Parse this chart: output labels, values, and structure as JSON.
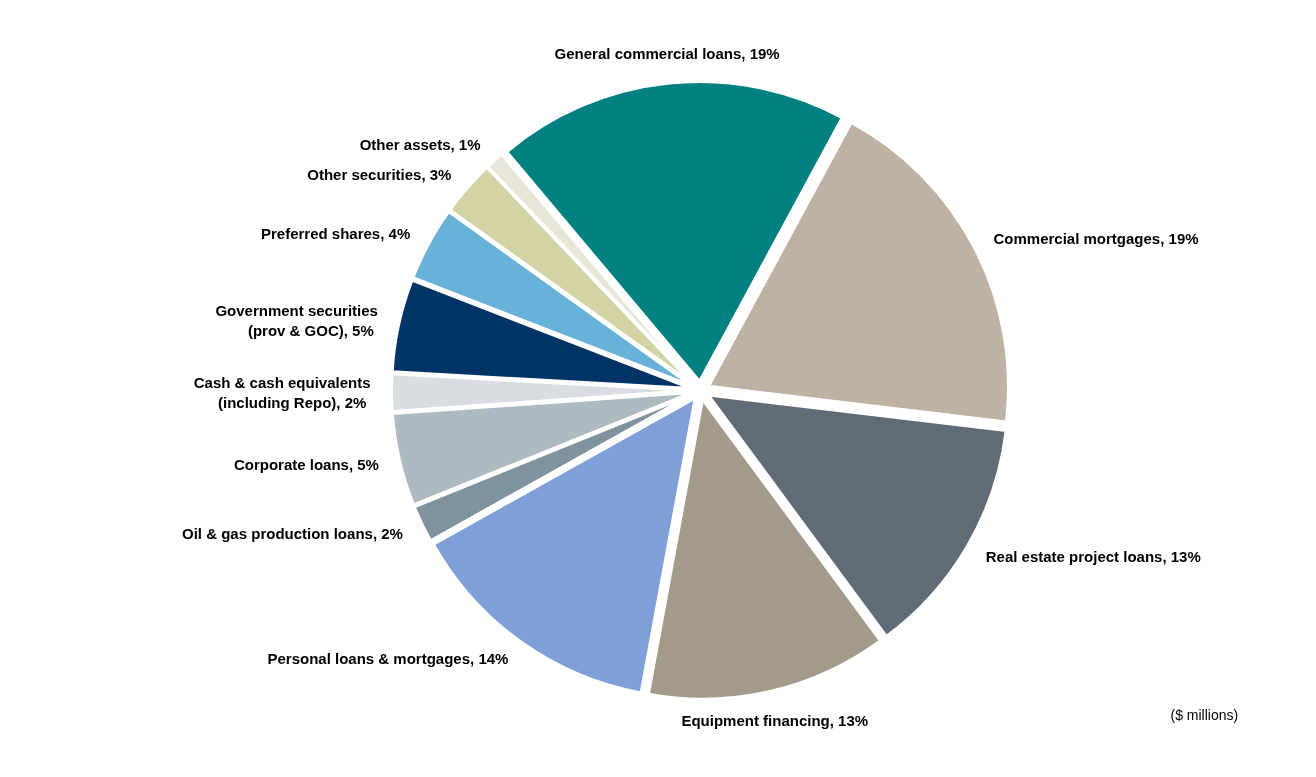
{
  "chart_data": {
    "type": "pie",
    "categories": [
      "General commercial loans",
      "Commercial mortgages",
      "Real estate project loans",
      "Equipment financing",
      "Personal loans & mortgages",
      "Oil & gas production loans",
      "Corporate loans",
      "Cash & cash equivalents (including Repo)",
      "Government securities (prov & GOC)",
      "Preferred shares",
      "Other securities",
      "Other assets"
    ],
    "values": [
      19,
      19,
      13,
      13,
      14,
      2,
      5,
      2,
      5,
      4,
      3,
      1
    ],
    "colors": [
      "#008080",
      "#bfb2a3",
      "#5f6b77",
      "#a39a8a",
      "#7f9fd8",
      "#7f939e",
      "#acbac2",
      "#d9dde2",
      "#003366",
      "#66b2d9",
      "#d3d3a5",
      "#e8e6d6"
    ],
    "value_labels": [
      "19%",
      "19%",
      "13%",
      "13%",
      "14%",
      "2%",
      "5%",
      "2%",
      "5%",
      "4%",
      "3%",
      "1%"
    ],
    "annotations": [
      "($ millions)"
    ]
  }
}
